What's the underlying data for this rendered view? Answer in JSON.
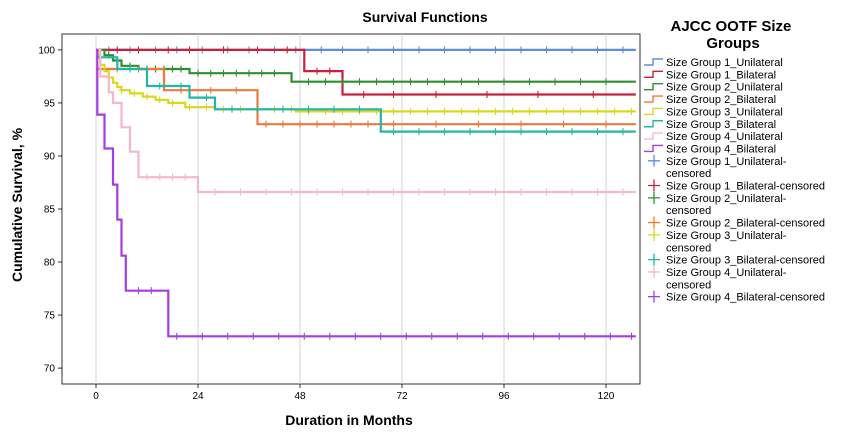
{
  "chart_data": {
    "type": "line",
    "title": "Survival Functions",
    "xlabel": "Duration in Months",
    "ylabel": "Cumulative Survival, %",
    "xlim": [
      -8,
      128
    ],
    "ylim": [
      68.5,
      101.5
    ],
    "xticks": [
      0,
      24,
      48,
      72,
      96,
      120
    ],
    "yticks": [
      70,
      75,
      80,
      85,
      90,
      95,
      100
    ],
    "grid": "vertical",
    "legend": {
      "title": "AJCC OOTF Size Groups",
      "placement": "right",
      "entries": [
        {
          "label": "Size Group 1_Unilateral",
          "color": "#5b8fdc",
          "kind": "line"
        },
        {
          "label": "Size Group 1_Bilateral",
          "color": "#c8203e",
          "kind": "line"
        },
        {
          "label": "Size Group 2_Unilateral",
          "color": "#2f8f2f",
          "kind": "line"
        },
        {
          "label": "Size Group 2_Bilateral",
          "color": "#ee7a3a",
          "kind": "line"
        },
        {
          "label": "Size Group 3_Unilateral",
          "color": "#d8d81e",
          "kind": "line"
        },
        {
          "label": "Size Group 3_Bilateral",
          "color": "#22b5a8",
          "kind": "line"
        },
        {
          "label": "Size Group 4_Unilateral",
          "color": "#f7b6cf",
          "kind": "line"
        },
        {
          "label": "Size Group 4_Bilateral",
          "color": "#a43ee0",
          "kind": "line"
        },
        {
          "label": "Size Group 1_Unilateral-censored",
          "color": "#5b8fdc",
          "kind": "censor"
        },
        {
          "label": "Size Group 1_Bilateral-censored",
          "color": "#c8203e",
          "kind": "censor"
        },
        {
          "label": "Size Group 2_Unilateral-censored",
          "color": "#2f8f2f",
          "kind": "censor"
        },
        {
          "label": "Size Group 2_Bilateral-censored",
          "color": "#ee7a3a",
          "kind": "censor"
        },
        {
          "label": "Size Group 3_Unilateral-censored",
          "color": "#d8d81e",
          "kind": "censor"
        },
        {
          "label": "Size Group 3_Bilateral-censored",
          "color": "#22b5a8",
          "kind": "censor"
        },
        {
          "label": "Size Group 4_Unilateral-censored",
          "color": "#f7b6cf",
          "kind": "censor"
        },
        {
          "label": "Size Group 4_Bilateral-censored",
          "color": "#a43ee0",
          "kind": "censor"
        }
      ]
    },
    "series": [
      {
        "name": "Size Group 1_Unilateral",
        "color": "#5b8fdc",
        "end": 127,
        "steps": [
          [
            0,
            100
          ]
        ],
        "censored": [
          3,
          8,
          14,
          19,
          25,
          31,
          36,
          42,
          47,
          53,
          58,
          64,
          70,
          76,
          82,
          88,
          94,
          100,
          106,
          112,
          118,
          124
        ]
      },
      {
        "name": "Size Group 1_Bilateral",
        "color": "#c8203e",
        "end": 127,
        "steps": [
          [
            0,
            100
          ],
          [
            49,
            98
          ],
          [
            58,
            95.8
          ]
        ],
        "censored": [
          5,
          10,
          17,
          22,
          30,
          38,
          45,
          52,
          55,
          63,
          70,
          80,
          92,
          104,
          117
        ]
      },
      {
        "name": "Size Group 2_Unilateral",
        "color": "#2f8f2f",
        "end": 127,
        "steps": [
          [
            0,
            100
          ],
          [
            2,
            99.5
          ],
          [
            4,
            99.0
          ],
          [
            6,
            98.5
          ],
          [
            10,
            98.2
          ],
          [
            22,
            97.8
          ],
          [
            46,
            97.0
          ]
        ],
        "censored": [
          3,
          5,
          8,
          12,
          14,
          16,
          18,
          20,
          24,
          27,
          30,
          33,
          36,
          39,
          42,
          50,
          54,
          58,
          62,
          66,
          70,
          74,
          78,
          82,
          86,
          90,
          96,
          102,
          108,
          114,
          120
        ]
      },
      {
        "name": "Size Group 2_Bilateral",
        "color": "#ee7a3a",
        "end": 127,
        "steps": [
          [
            0,
            98.2
          ],
          [
            16,
            96.2
          ],
          [
            38,
            93.0
          ]
        ],
        "censored": [
          5,
          10,
          20,
          27,
          33,
          40,
          44,
          48,
          52,
          56,
          60,
          64,
          70,
          80,
          90,
          100,
          110,
          120
        ]
      },
      {
        "name": "Size Group 3_Unilateral",
        "color": "#d8d81e",
        "end": 127,
        "steps": [
          [
            0,
            100
          ],
          [
            0.5,
            99.4
          ],
          [
            1,
            98.6
          ],
          [
            2,
            98.0
          ],
          [
            3,
            97.4
          ],
          [
            4,
            96.9
          ],
          [
            5,
            96.5
          ],
          [
            6,
            96.2
          ],
          [
            8,
            95.9
          ],
          [
            11,
            95.6
          ],
          [
            14,
            95.3
          ],
          [
            17,
            95.0
          ],
          [
            21,
            94.6
          ],
          [
            28,
            94.4
          ],
          [
            47,
            94.2
          ]
        ],
        "censored": [
          3,
          6,
          9,
          12,
          15,
          18,
          22,
          26,
          30,
          34,
          38,
          42,
          46,
          50,
          54,
          58,
          62,
          66,
          70,
          74,
          78,
          82,
          86,
          90,
          94,
          98,
          102,
          106,
          110,
          114,
          118,
          122,
          126
        ]
      },
      {
        "name": "Size Group 3_Bilateral",
        "color": "#22b5a8",
        "end": 127,
        "steps": [
          [
            0,
            99.3
          ],
          [
            5,
            98.2
          ],
          [
            12,
            96.6
          ],
          [
            22,
            95.5
          ],
          [
            28,
            94.4
          ],
          [
            67,
            92.3
          ]
        ],
        "censored": [
          8,
          15,
          20,
          26,
          32,
          38,
          44,
          50,
          56,
          62,
          70,
          76,
          82,
          88,
          94,
          100,
          106,
          112,
          118,
          124
        ]
      },
      {
        "name": "Size Group 4_Unilateral",
        "color": "#f7b6cf",
        "end": 127,
        "steps": [
          [
            0,
            100
          ],
          [
            1,
            97.5
          ],
          [
            3,
            96.0
          ],
          [
            4,
            95.0
          ],
          [
            6,
            92.7
          ],
          [
            8,
            90.4
          ],
          [
            10,
            88.0
          ],
          [
            24,
            86.6
          ]
        ],
        "censored": [
          12,
          15,
          18,
          21,
          28,
          34,
          40,
          46,
          52,
          58,
          64,
          70,
          76,
          82,
          88,
          94,
          100,
          106,
          112,
          118,
          124
        ]
      },
      {
        "name": "Size Group 4_Bilateral",
        "color": "#a43ee0",
        "end": 127,
        "steps": [
          [
            0,
            100
          ],
          [
            0.3,
            93.9
          ],
          [
            2,
            90.7
          ],
          [
            4,
            87.3
          ],
          [
            5,
            84.0
          ],
          [
            6,
            80.6
          ],
          [
            7,
            77.3
          ],
          [
            17,
            73.0
          ]
        ],
        "censored": [
          10,
          13,
          19,
          25,
          31,
          37,
          43,
          49,
          55,
          61,
          67,
          73,
          79,
          85,
          91,
          97,
          103,
          109,
          115,
          121,
          126
        ]
      }
    ]
  }
}
